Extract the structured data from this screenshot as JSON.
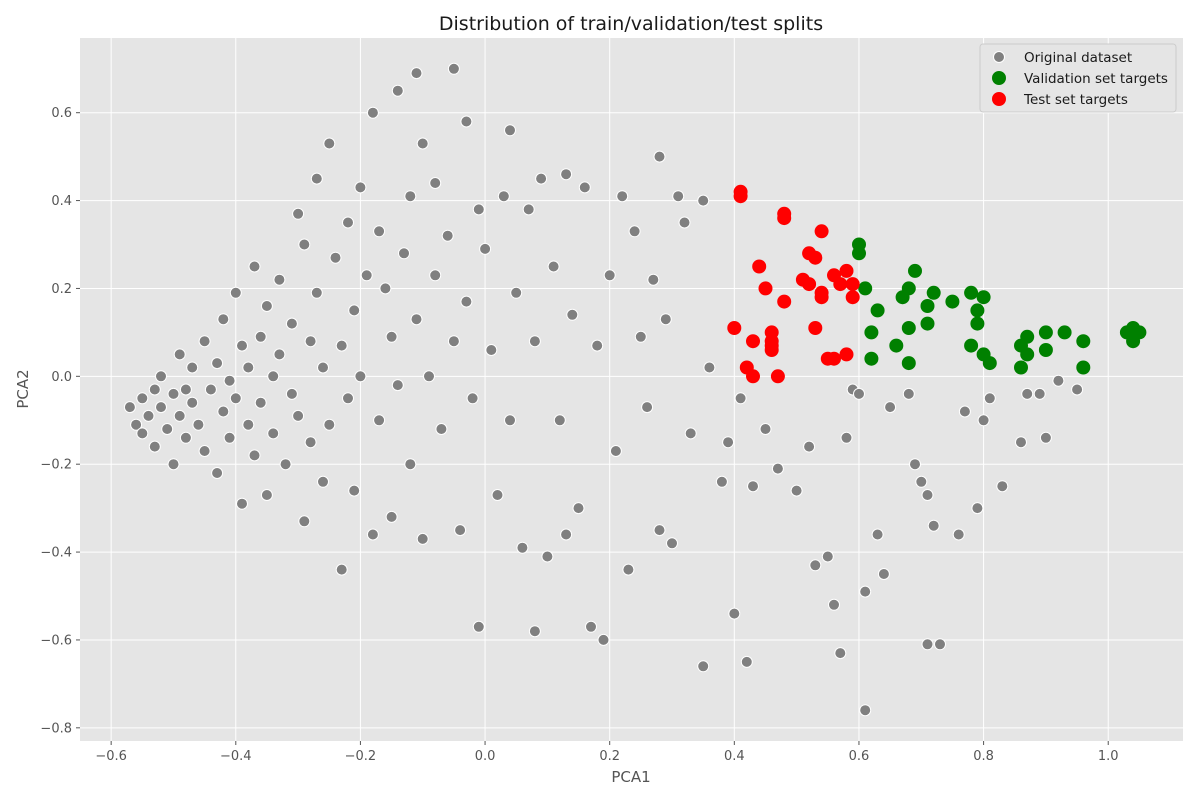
{
  "chart_data": {
    "type": "scatter",
    "title": "Distribution of train/validation/test splits",
    "xlabel": "PCA1",
    "ylabel": "PCA2",
    "xlim": [
      -0.65,
      1.12
    ],
    "ylim": [
      -0.83,
      0.77
    ],
    "xticks": [
      -0.6,
      -0.4,
      -0.2,
      0.0,
      0.2,
      0.4,
      0.6,
      0.8,
      1.0
    ],
    "xtick_labels": [
      "−0.6",
      "−0.4",
      "−0.2",
      "0.0",
      "0.2",
      "0.4",
      "0.6",
      "0.8",
      "1.0"
    ],
    "yticks": [
      -0.8,
      -0.6,
      -0.4,
      -0.2,
      0.0,
      0.2,
      0.4,
      0.6
    ],
    "ytick_labels": [
      "−0.8",
      "−0.6",
      "−0.4",
      "−0.2",
      "0.0",
      "0.2",
      "0.4",
      "0.6"
    ],
    "grid": true,
    "legend_position": "top-right",
    "background": "#e5e5e5",
    "series": [
      {
        "name": "Original dataset",
        "color": "#808080",
        "points": [
          [
            -0.57,
            -0.07
          ],
          [
            -0.56,
            -0.11
          ],
          [
            -0.55,
            -0.05
          ],
          [
            -0.55,
            -0.13
          ],
          [
            -0.54,
            -0.09
          ],
          [
            -0.53,
            -0.03
          ],
          [
            -0.53,
            -0.16
          ],
          [
            -0.52,
            -0.07
          ],
          [
            -0.52,
            0.0
          ],
          [
            -0.51,
            -0.12
          ],
          [
            -0.5,
            -0.04
          ],
          [
            -0.5,
            -0.2
          ],
          [
            -0.49,
            -0.09
          ],
          [
            -0.49,
            0.05
          ],
          [
            -0.48,
            -0.14
          ],
          [
            -0.48,
            -0.03
          ],
          [
            -0.47,
            -0.06
          ],
          [
            -0.47,
            0.02
          ],
          [
            -0.46,
            -0.11
          ],
          [
            -0.45,
            0.08
          ],
          [
            -0.45,
            -0.17
          ],
          [
            -0.44,
            -0.03
          ],
          [
            -0.43,
            0.03
          ],
          [
            -0.43,
            -0.22
          ],
          [
            -0.42,
            -0.08
          ],
          [
            -0.42,
            0.13
          ],
          [
            -0.41,
            -0.01
          ],
          [
            -0.41,
            -0.14
          ],
          [
            -0.4,
            0.19
          ],
          [
            -0.4,
            -0.05
          ],
          [
            -0.39,
            0.07
          ],
          [
            -0.39,
            -0.29
          ],
          [
            -0.38,
            0.02
          ],
          [
            -0.38,
            -0.11
          ],
          [
            -0.37,
            0.25
          ],
          [
            -0.37,
            -0.18
          ],
          [
            -0.36,
            0.09
          ],
          [
            -0.36,
            -0.06
          ],
          [
            -0.35,
            0.16
          ],
          [
            -0.35,
            -0.27
          ],
          [
            -0.34,
            0.0
          ],
          [
            -0.34,
            -0.13
          ],
          [
            -0.33,
            0.22
          ],
          [
            -0.33,
            0.05
          ],
          [
            -0.32,
            -0.2
          ],
          [
            -0.31,
            0.12
          ],
          [
            -0.31,
            -0.04
          ],
          [
            -0.3,
            0.37
          ],
          [
            -0.3,
            -0.09
          ],
          [
            -0.29,
            0.3
          ],
          [
            -0.29,
            -0.33
          ],
          [
            -0.28,
            0.08
          ],
          [
            -0.28,
            -0.15
          ],
          [
            -0.27,
            0.45
          ],
          [
            -0.27,
            0.19
          ],
          [
            -0.26,
            0.02
          ],
          [
            -0.26,
            -0.24
          ],
          [
            -0.25,
            0.53
          ],
          [
            -0.25,
            -0.11
          ],
          [
            -0.24,
            0.27
          ],
          [
            -0.23,
            0.07
          ],
          [
            -0.23,
            -0.44
          ],
          [
            -0.22,
            0.35
          ],
          [
            -0.22,
            -0.05
          ],
          [
            -0.21,
            0.15
          ],
          [
            -0.21,
            -0.26
          ],
          [
            -0.2,
            0.43
          ],
          [
            -0.2,
            0.0
          ],
          [
            -0.19,
            0.23
          ],
          [
            -0.18,
            0.6
          ],
          [
            -0.18,
            -0.36
          ],
          [
            -0.17,
            0.33
          ],
          [
            -0.17,
            -0.1
          ],
          [
            -0.16,
            0.2
          ],
          [
            -0.15,
            0.09
          ],
          [
            -0.15,
            -0.32
          ],
          [
            -0.14,
            0.65
          ],
          [
            -0.14,
            -0.02
          ],
          [
            -0.13,
            0.28
          ],
          [
            -0.12,
            0.41
          ],
          [
            -0.12,
            -0.2
          ],
          [
            -0.11,
            0.69
          ],
          [
            -0.11,
            0.13
          ],
          [
            -0.1,
            -0.37
          ],
          [
            -0.1,
            0.53
          ],
          [
            -0.09,
            0.0
          ],
          [
            -0.08,
            0.44
          ],
          [
            -0.08,
            0.23
          ],
          [
            -0.07,
            -0.12
          ],
          [
            -0.06,
            0.32
          ],
          [
            -0.05,
            0.7
          ],
          [
            -0.05,
            0.08
          ],
          [
            -0.04,
            -0.35
          ],
          [
            -0.03,
            0.58
          ],
          [
            -0.03,
            0.17
          ],
          [
            -0.02,
            -0.05
          ],
          [
            -0.01,
            0.38
          ],
          [
            -0.01,
            -0.57
          ],
          [
            0.0,
            0.29
          ],
          [
            0.01,
            0.06
          ],
          [
            0.02,
            -0.27
          ],
          [
            0.03,
            0.41
          ],
          [
            0.04,
            0.56
          ],
          [
            0.04,
            -0.1
          ],
          [
            0.05,
            0.19
          ],
          [
            0.06,
            -0.39
          ],
          [
            0.07,
            0.38
          ],
          [
            0.08,
            -0.58
          ],
          [
            0.08,
            0.08
          ],
          [
            0.09,
            0.45
          ],
          [
            0.1,
            -0.41
          ],
          [
            0.11,
            0.25
          ],
          [
            0.12,
            -0.1
          ],
          [
            0.13,
            0.46
          ],
          [
            0.13,
            -0.36
          ],
          [
            0.14,
            0.14
          ],
          [
            0.15,
            -0.3
          ],
          [
            0.16,
            0.43
          ],
          [
            0.17,
            -0.57
          ],
          [
            0.18,
            0.07
          ],
          [
            0.19,
            -0.6
          ],
          [
            0.2,
            0.23
          ],
          [
            0.21,
            -0.17
          ],
          [
            0.22,
            0.41
          ],
          [
            0.23,
            -0.44
          ],
          [
            0.24,
            0.33
          ],
          [
            0.25,
            0.09
          ],
          [
            0.26,
            -0.07
          ],
          [
            0.27,
            0.22
          ],
          [
            0.28,
            0.5
          ],
          [
            0.28,
            -0.35
          ],
          [
            0.29,
            0.13
          ],
          [
            0.3,
            -0.38
          ],
          [
            0.31,
            0.41
          ],
          [
            0.32,
            0.35
          ],
          [
            0.33,
            -0.13
          ],
          [
            0.35,
            -0.66
          ],
          [
            0.35,
            0.4
          ],
          [
            0.36,
            0.02
          ],
          [
            0.38,
            -0.24
          ],
          [
            0.39,
            -0.15
          ],
          [
            0.4,
            -0.54
          ],
          [
            0.41,
            -0.05
          ],
          [
            0.42,
            -0.65
          ],
          [
            0.43,
            -0.25
          ],
          [
            0.45,
            -0.12
          ],
          [
            0.47,
            -0.21
          ],
          [
            0.5,
            -0.26
          ],
          [
            0.52,
            -0.16
          ],
          [
            0.53,
            -0.43
          ],
          [
            0.55,
            -0.41
          ],
          [
            0.56,
            -0.52
          ],
          [
            0.57,
            -0.63
          ],
          [
            0.58,
            -0.14
          ],
          [
            0.59,
            -0.03
          ],
          [
            0.6,
            -0.04
          ],
          [
            0.61,
            -0.76
          ],
          [
            0.61,
            -0.49
          ],
          [
            0.63,
            -0.36
          ],
          [
            0.64,
            -0.45
          ],
          [
            0.65,
            -0.07
          ],
          [
            0.68,
            -0.04
          ],
          [
            0.69,
            -0.2
          ],
          [
            0.7,
            -0.24
          ],
          [
            0.71,
            -0.27
          ],
          [
            0.71,
            -0.61
          ],
          [
            0.72,
            -0.34
          ],
          [
            0.73,
            -0.61
          ],
          [
            0.76,
            -0.36
          ],
          [
            0.77,
            -0.08
          ],
          [
            0.79,
            -0.3
          ],
          [
            0.8,
            -0.1
          ],
          [
            0.81,
            -0.05
          ],
          [
            0.83,
            -0.25
          ],
          [
            0.86,
            -0.15
          ],
          [
            0.87,
            -0.04
          ],
          [
            0.89,
            -0.04
          ],
          [
            0.9,
            -0.14
          ],
          [
            0.92,
            -0.01
          ],
          [
            0.95,
            -0.03
          ]
        ]
      },
      {
        "name": "Validation set targets",
        "color": "#008000",
        "points": [
          [
            0.6,
            0.3
          ],
          [
            0.6,
            0.28
          ],
          [
            0.61,
            0.2
          ],
          [
            0.62,
            0.1
          ],
          [
            0.62,
            0.04
          ],
          [
            0.63,
            0.15
          ],
          [
            0.66,
            0.07
          ],
          [
            0.67,
            0.18
          ],
          [
            0.68,
            0.11
          ],
          [
            0.68,
            0.03
          ],
          [
            0.68,
            0.2
          ],
          [
            0.69,
            0.24
          ],
          [
            0.71,
            0.16
          ],
          [
            0.71,
            0.12
          ],
          [
            0.72,
            0.19
          ],
          [
            0.75,
            0.17
          ],
          [
            0.78,
            0.07
          ],
          [
            0.78,
            0.19
          ],
          [
            0.79,
            0.12
          ],
          [
            0.79,
            0.15
          ],
          [
            0.8,
            0.18
          ],
          [
            0.8,
            0.05
          ],
          [
            0.81,
            0.03
          ],
          [
            0.86,
            0.02
          ],
          [
            0.86,
            0.07
          ],
          [
            0.87,
            0.09
          ],
          [
            0.87,
            0.05
          ],
          [
            0.9,
            0.1
          ],
          [
            0.9,
            0.06
          ],
          [
            0.93,
            0.1
          ],
          [
            0.96,
            0.08
          ],
          [
            0.96,
            0.02
          ],
          [
            1.03,
            0.1
          ],
          [
            1.04,
            0.08
          ],
          [
            1.04,
            0.11
          ],
          [
            1.05,
            0.1
          ]
        ]
      },
      {
        "name": "Test set targets",
        "color": "#ff0000",
        "points": [
          [
            0.4,
            0.11
          ],
          [
            0.41,
            0.42
          ],
          [
            0.41,
            0.41
          ],
          [
            0.42,
            0.02
          ],
          [
            0.43,
            0.08
          ],
          [
            0.43,
            0.0
          ],
          [
            0.44,
            0.25
          ],
          [
            0.45,
            0.2
          ],
          [
            0.46,
            0.07
          ],
          [
            0.46,
            0.08
          ],
          [
            0.46,
            0.1
          ],
          [
            0.46,
            0.06
          ],
          [
            0.47,
            0.0
          ],
          [
            0.48,
            0.36
          ],
          [
            0.48,
            0.37
          ],
          [
            0.48,
            0.17
          ],
          [
            0.51,
            0.22
          ],
          [
            0.52,
            0.28
          ],
          [
            0.52,
            0.21
          ],
          [
            0.53,
            0.27
          ],
          [
            0.53,
            0.11
          ],
          [
            0.54,
            0.19
          ],
          [
            0.54,
            0.18
          ],
          [
            0.54,
            0.33
          ],
          [
            0.55,
            0.04
          ],
          [
            0.56,
            0.04
          ],
          [
            0.56,
            0.23
          ],
          [
            0.57,
            0.21
          ],
          [
            0.58,
            0.24
          ],
          [
            0.58,
            0.05
          ],
          [
            0.59,
            0.21
          ],
          [
            0.59,
            0.18
          ]
        ]
      }
    ]
  }
}
